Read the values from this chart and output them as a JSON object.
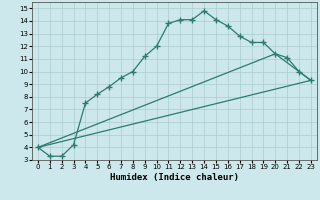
{
  "title": "",
  "xlabel": "Humidex (Indice chaleur)",
  "ylabel": "",
  "bg_color": "#cce8ec",
  "grid_color": "#aacccc",
  "line_color": "#2d7a70",
  "xlim": [
    -0.5,
    23.5
  ],
  "ylim": [
    3,
    15.5
  ],
  "xticks": [
    0,
    1,
    2,
    3,
    4,
    5,
    6,
    7,
    8,
    9,
    10,
    11,
    12,
    13,
    14,
    15,
    16,
    17,
    18,
    19,
    20,
    21,
    22,
    23
  ],
  "yticks": [
    3,
    4,
    5,
    6,
    7,
    8,
    9,
    10,
    11,
    12,
    13,
    14,
    15
  ],
  "line1_x": [
    0,
    1,
    2,
    3,
    4,
    5,
    6,
    7,
    8,
    9,
    10,
    11,
    12,
    13,
    14,
    15,
    16,
    17,
    18,
    19,
    20,
    21,
    22,
    23
  ],
  "line1_y": [
    4.0,
    3.3,
    3.3,
    4.2,
    7.5,
    8.2,
    8.8,
    9.5,
    10.0,
    11.2,
    12.0,
    13.8,
    14.1,
    14.1,
    14.8,
    14.1,
    13.6,
    12.8,
    12.3,
    12.3,
    11.4,
    11.1,
    10.0,
    9.3
  ],
  "line2_x": [
    0,
    23
  ],
  "line2_y": [
    4.0,
    9.3
  ],
  "line3_x": [
    0,
    20,
    23
  ],
  "line3_y": [
    4.0,
    11.4,
    9.3
  ],
  "marker_size": 2.0,
  "line_width": 0.9,
  "tick_fontsize": 5.0,
  "xlabel_fontsize": 6.5
}
